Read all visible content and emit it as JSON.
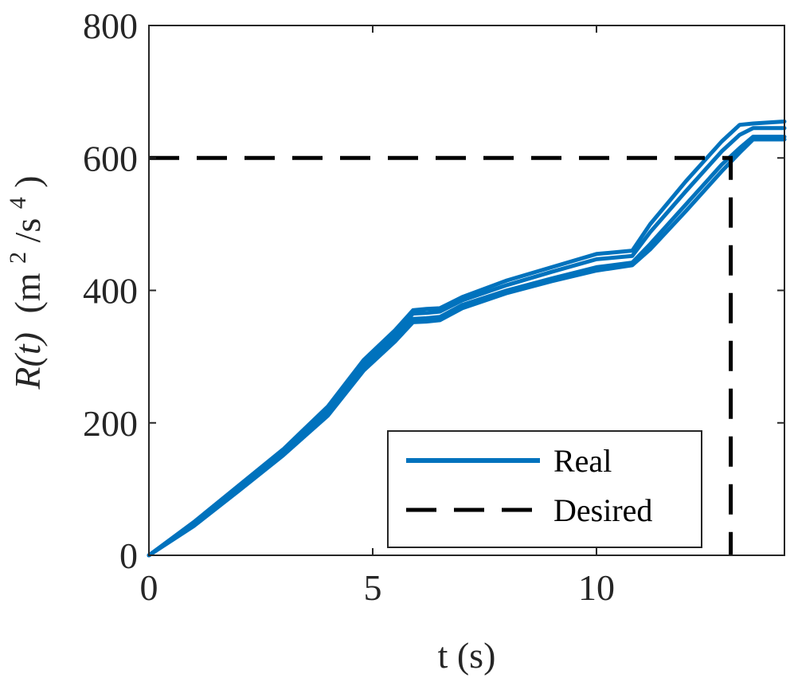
{
  "chart_data": {
    "type": "line",
    "title": "",
    "xlabel": "t (s)",
    "ylabel_main": "R(t)",
    "ylabel_unit_open": "(m",
    "ylabel_unit_exp1": "2",
    "ylabel_unit_mid": "/s",
    "ylabel_unit_exp2": "4",
    "ylabel_unit_close": ")",
    "xlim": [
      0,
      14.2
    ],
    "ylim": [
      0,
      800
    ],
    "xticks": [
      0,
      5,
      10
    ],
    "xtick_labels": [
      "0",
      "5",
      "10"
    ],
    "yticks": [
      0,
      200,
      400,
      600,
      800
    ],
    "ytick_labels": [
      "0",
      "200",
      "400",
      "600",
      "800"
    ],
    "grid": false,
    "legend_placement": "bottom-right",
    "colors": {
      "real": "#0072BD",
      "desired": "#000000"
    },
    "series": [
      {
        "name": "Real",
        "style": "solid",
        "runs": [
          {
            "x": [
              0,
              1,
              2,
              3,
              4,
              4.8,
              5.5,
              5.9,
              6.2,
              6.5,
              7,
              8,
              9,
              10,
              10.8,
              11.2,
              12,
              12.8,
              13.2,
              13.5,
              14.2
            ],
            "y": [
              0,
              50,
              105,
              160,
              225,
              295,
              340,
              370,
              372,
              373,
              390,
              415,
              435,
              455,
              460,
              500,
              565,
              625,
              650,
              652,
              655
            ]
          },
          {
            "x": [
              0,
              1,
              2,
              3,
              4,
              4.8,
              5.5,
              5.9,
              6.2,
              6.5,
              7,
              8,
              9,
              10,
              10.8,
              11.2,
              12,
              12.8,
              13.2,
              13.5,
              14.2
            ],
            "y": [
              0,
              48,
              102,
              157,
              220,
              290,
              335,
              365,
              366,
              368,
              385,
              408,
              428,
              447,
              452,
              488,
              550,
              610,
              635,
              645,
              645
            ]
          },
          {
            "x": [
              0,
              1,
              2,
              3,
              4,
              4.8,
              5.5,
              5.9,
              6.2,
              6.5,
              7,
              8,
              9,
              10,
              10.8,
              11.2,
              12,
              12.8,
              13.2,
              13.5,
              14.2
            ],
            "y": [
              0,
              46,
              99,
              154,
              215,
              283,
              328,
              357,
              358,
              360,
              378,
              400,
              418,
              435,
              442,
              470,
              530,
              590,
              615,
              632,
              632
            ]
          },
          {
            "x": [
              0,
              1,
              2,
              3,
              4,
              4.8,
              5.5,
              5.9,
              6.2,
              6.5,
              7,
              8,
              9,
              10,
              10.8,
              11.2,
              12,
              12.8,
              13.2,
              13.5,
              14.2
            ],
            "y": [
              0,
              44,
              97,
              151,
              211,
              279,
              323,
              352,
              353,
              355,
              373,
              396,
              414,
              430,
              438,
              462,
              520,
              580,
              608,
              628,
              628
            ]
          }
        ]
      },
      {
        "name": "Desired",
        "style": "dashed",
        "x": [
          0,
          13,
          13
        ],
        "y": [
          600,
          600,
          0
        ]
      }
    ]
  }
}
